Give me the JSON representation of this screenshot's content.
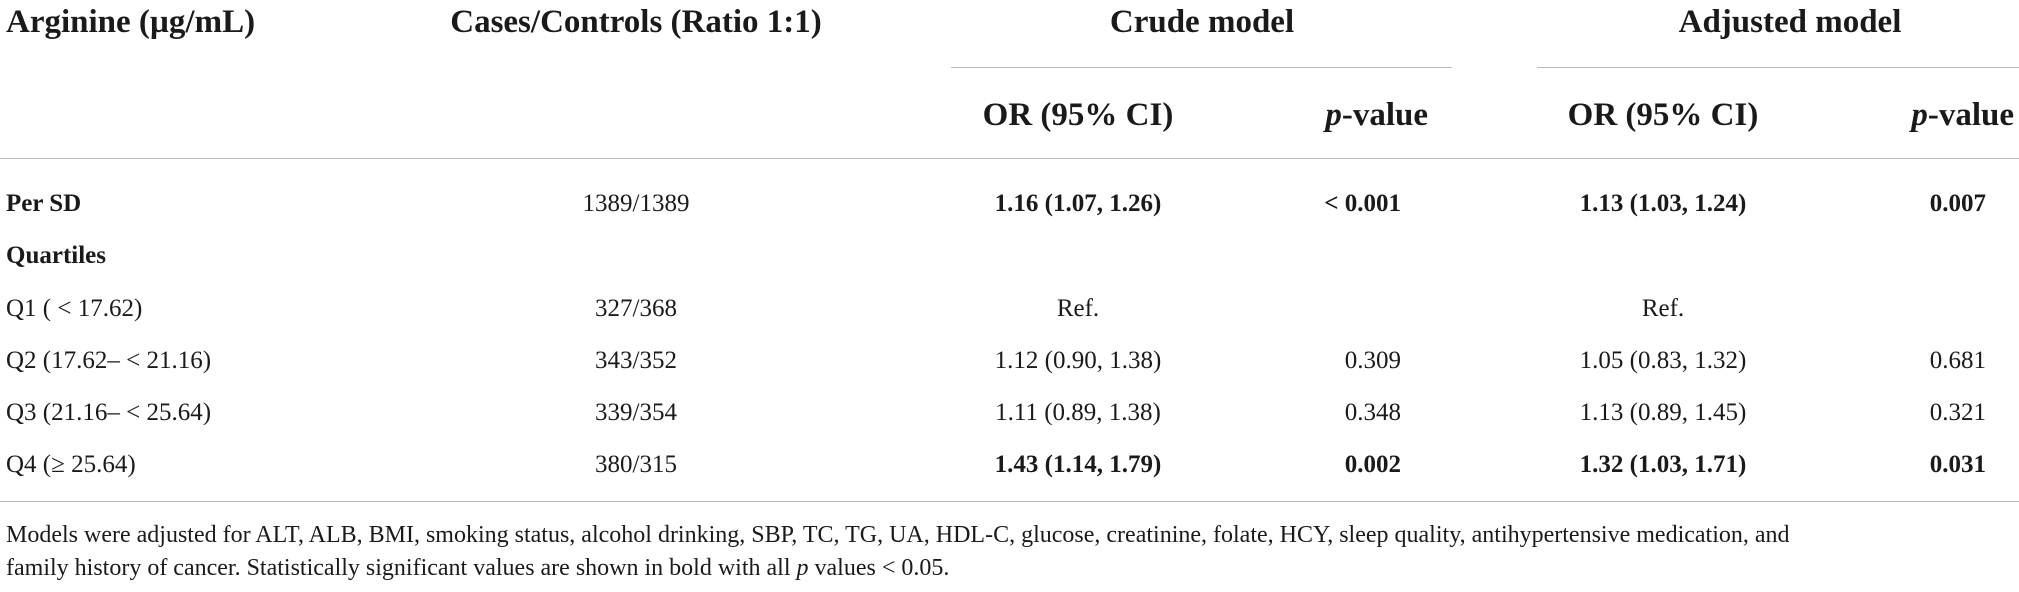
{
  "table": {
    "headers": {
      "arginine": "Arginine (µg/mL)",
      "cases_controls": "Cases/Controls (Ratio 1:1)",
      "crude_model": "Crude model",
      "adjusted_model": "Adjusted model",
      "or_ci": "OR (95% CI)",
      "p_prefix": "p",
      "p_suffix": "-value"
    },
    "rows": [
      {
        "label": "Per SD",
        "cases": "1389/1389",
        "crude_or": "1.16 (1.07, 1.26)",
        "crude_p": "< 0.001",
        "adj_or": "1.13 (1.03, 1.24)",
        "adj_p": "0.007"
      },
      {
        "label": "Quartiles",
        "cases": "",
        "crude_or": "",
        "crude_p": "",
        "adj_or": "",
        "adj_p": ""
      },
      {
        "label": "Q1 ( < 17.62)",
        "cases": "327/368",
        "crude_or": "Ref.",
        "crude_p": "",
        "adj_or": "Ref.",
        "adj_p": ""
      },
      {
        "label": "Q2 (17.62– < 21.16)",
        "cases": "343/352",
        "crude_or": "1.12 (0.90, 1.38)",
        "crude_p": "0.309",
        "adj_or": "1.05 (0.83, 1.32)",
        "adj_p": "0.681"
      },
      {
        "label": "Q3 (21.16– < 25.64)",
        "cases": "339/354",
        "crude_or": "1.11 (0.89, 1.38)",
        "crude_p": "0.348",
        "adj_or": "1.13 (0.89, 1.45)",
        "adj_p": "0.321"
      },
      {
        "label": "Q4 (≥ 25.64)",
        "cases": "380/315",
        "crude_or": "1.43 (1.14, 1.79)",
        "crude_p": "0.002",
        "adj_or": "1.32 (1.03, 1.71)",
        "adj_p": "0.031"
      }
    ]
  },
  "footnote": {
    "line1": "Models were adjusted for ALT, ALB, BMI, smoking status, alcohol drinking, SBP, TC, TG, UA, HDL-C, glucose, creatinine, folate, HCY, sleep quality, antihypertensive medication, and",
    "line2_start": "family history of cancer. Statistically significant values are shown in bold with all ",
    "line2_p": "p",
    "line2_end": " values < 0.05."
  }
}
